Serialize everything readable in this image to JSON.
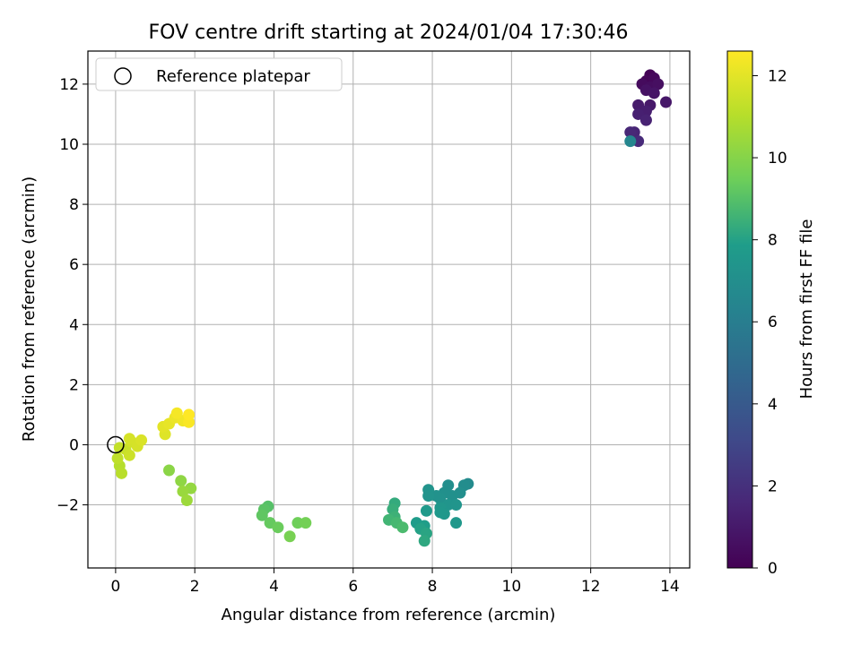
{
  "chart_data": {
    "type": "scatter",
    "title": "FOV centre drift starting at 2024/01/04 17:30:46",
    "xlabel": "Angular distance from reference (arcmin)",
    "ylabel": "Rotation from reference (arcmin)",
    "xlim": [
      -0.7,
      14.5
    ],
    "ylim": [
      -4.1,
      13.1
    ],
    "xticks": [
      0,
      2,
      4,
      6,
      8,
      10,
      12,
      14
    ],
    "yticks": [
      -2,
      0,
      2,
      4,
      6,
      8,
      10,
      12
    ],
    "grid": true,
    "legend": {
      "placement": "top-left",
      "entries": [
        "Reference platepar"
      ]
    },
    "reference_point": {
      "x": 0,
      "y": 0
    },
    "colorbar": {
      "label": "Hours from first FF file",
      "range": [
        0,
        12.6
      ],
      "ticks": [
        0,
        2,
        4,
        6,
        8,
        10,
        12
      ],
      "colormap": "viridis",
      "colors": [
        "#440154",
        "#482777",
        "#3f4a8a",
        "#31678e",
        "#26838f",
        "#1f9d8a",
        "#6cce5a",
        "#b6de2b",
        "#fee825"
      ]
    },
    "series": [
      {
        "points": [
          {
            "x": 13.5,
            "y": 12.3,
            "t": 0.1
          },
          {
            "x": 13.4,
            "y": 12.1,
            "t": 0.2
          },
          {
            "x": 13.6,
            "y": 12.2,
            "t": 0.3
          },
          {
            "x": 13.3,
            "y": 12.0,
            "t": 0.4
          },
          {
            "x": 13.5,
            "y": 11.9,
            "t": 0.5
          },
          {
            "x": 13.7,
            "y": 12.0,
            "t": 0.6
          },
          {
            "x": 13.4,
            "y": 11.8,
            "t": 0.7
          },
          {
            "x": 13.6,
            "y": 11.7,
            "t": 0.8
          },
          {
            "x": 13.9,
            "y": 11.4,
            "t": 0.9
          },
          {
            "x": 13.5,
            "y": 11.3,
            "t": 1.0
          },
          {
            "x": 13.2,
            "y": 11.3,
            "t": 1.1
          },
          {
            "x": 13.4,
            "y": 11.1,
            "t": 1.2
          },
          {
            "x": 13.2,
            "y": 11.0,
            "t": 1.3
          },
          {
            "x": 13.4,
            "y": 10.8,
            "t": 1.4
          },
          {
            "x": 13.1,
            "y": 10.4,
            "t": 1.5
          },
          {
            "x": 13.0,
            "y": 10.4,
            "t": 1.6
          },
          {
            "x": 13.2,
            "y": 10.1,
            "t": 1.7
          },
          {
            "x": 13.0,
            "y": 10.1,
            "t": 6.5
          },
          {
            "x": 8.9,
            "y": -1.3,
            "t": 6.8
          },
          {
            "x": 8.8,
            "y": -1.35,
            "t": 6.9
          },
          {
            "x": 8.7,
            "y": -1.6,
            "t": 7.0
          },
          {
            "x": 8.4,
            "y": -1.35,
            "t": 7.0
          },
          {
            "x": 8.5,
            "y": -1.7,
            "t": 7.1
          },
          {
            "x": 8.3,
            "y": -1.6,
            "t": 7.1
          },
          {
            "x": 8.2,
            "y": -1.8,
            "t": 7.2
          },
          {
            "x": 8.1,
            "y": -1.7,
            "t": 7.2
          },
          {
            "x": 7.9,
            "y": -1.5,
            "t": 7.3
          },
          {
            "x": 7.9,
            "y": -1.7,
            "t": 7.3
          },
          {
            "x": 8.4,
            "y": -2.0,
            "t": 7.4
          },
          {
            "x": 8.6,
            "y": -2.0,
            "t": 7.4
          },
          {
            "x": 8.2,
            "y": -2.1,
            "t": 7.5
          },
          {
            "x": 8.3,
            "y": -2.3,
            "t": 7.5
          },
          {
            "x": 8.2,
            "y": -2.25,
            "t": 7.6
          },
          {
            "x": 8.6,
            "y": -2.6,
            "t": 7.6
          },
          {
            "x": 7.85,
            "y": -2.2,
            "t": 7.7
          },
          {
            "x": 7.6,
            "y": -2.6,
            "t": 7.8
          },
          {
            "x": 7.8,
            "y": -2.7,
            "t": 7.9
          },
          {
            "x": 7.7,
            "y": -2.8,
            "t": 8.0
          },
          {
            "x": 7.85,
            "y": -2.95,
            "t": 8.1
          },
          {
            "x": 7.8,
            "y": -3.2,
            "t": 8.2
          },
          {
            "x": 7.05,
            "y": -1.95,
            "t": 8.3
          },
          {
            "x": 7.0,
            "y": -2.15,
            "t": 8.4
          },
          {
            "x": 7.05,
            "y": -2.4,
            "t": 8.5
          },
          {
            "x": 6.9,
            "y": -2.5,
            "t": 8.6
          },
          {
            "x": 7.1,
            "y": -2.6,
            "t": 8.7
          },
          {
            "x": 7.25,
            "y": -2.75,
            "t": 8.8
          },
          {
            "x": 3.85,
            "y": -2.05,
            "t": 9.0
          },
          {
            "x": 3.75,
            "y": -2.15,
            "t": 9.1
          },
          {
            "x": 3.7,
            "y": -2.35,
            "t": 9.2
          },
          {
            "x": 3.9,
            "y": -2.6,
            "t": 9.3
          },
          {
            "x": 4.1,
            "y": -2.75,
            "t": 9.4
          },
          {
            "x": 4.6,
            "y": -2.6,
            "t": 9.5
          },
          {
            "x": 4.8,
            "y": -2.6,
            "t": 9.6
          },
          {
            "x": 4.4,
            "y": -3.05,
            "t": 9.7
          },
          {
            "x": 1.35,
            "y": -0.85,
            "t": 10.1
          },
          {
            "x": 1.65,
            "y": -1.2,
            "t": 10.2
          },
          {
            "x": 1.9,
            "y": -1.45,
            "t": 10.3
          },
          {
            "x": 1.7,
            "y": -1.55,
            "t": 10.4
          },
          {
            "x": 1.8,
            "y": -1.85,
            "t": 10.5
          },
          {
            "x": 0.1,
            "y": -0.7,
            "t": 11.0
          },
          {
            "x": 0.15,
            "y": -0.95,
            "t": 11.1
          },
          {
            "x": 0.05,
            "y": -0.45,
            "t": 11.2
          },
          {
            "x": 0.1,
            "y": -0.1,
            "t": 11.3
          },
          {
            "x": 0.25,
            "y": -0.15,
            "t": 11.4
          },
          {
            "x": 0.35,
            "y": -0.35,
            "t": 11.5
          },
          {
            "x": 0.4,
            "y": 0.1,
            "t": 11.6
          },
          {
            "x": 0.35,
            "y": 0.2,
            "t": 11.7
          },
          {
            "x": 0.55,
            "y": -0.05,
            "t": 11.7
          },
          {
            "x": 0.65,
            "y": 0.15,
            "t": 11.8
          },
          {
            "x": 1.25,
            "y": 0.35,
            "t": 11.9
          },
          {
            "x": 1.2,
            "y": 0.6,
            "t": 12.0
          },
          {
            "x": 1.35,
            "y": 0.7,
            "t": 12.1
          },
          {
            "x": 1.5,
            "y": 0.9,
            "t": 12.2
          },
          {
            "x": 1.7,
            "y": 0.8,
            "t": 12.3
          },
          {
            "x": 1.55,
            "y": 1.05,
            "t": 12.4
          },
          {
            "x": 1.85,
            "y": 0.75,
            "t": 12.5
          },
          {
            "x": 1.85,
            "y": 1.0,
            "t": 12.6
          }
        ]
      }
    ]
  }
}
